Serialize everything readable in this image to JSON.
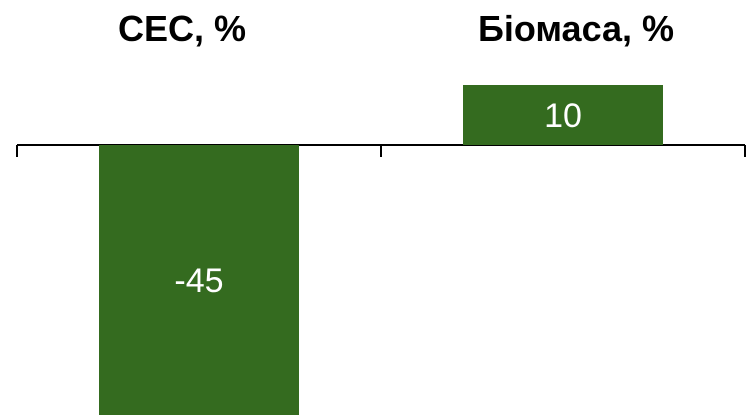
{
  "chart_data": {
    "type": "bar",
    "categories": [
      "СЕС, %",
      "Біомаса, %"
    ],
    "values": [
      -45,
      10
    ],
    "value_labels": [
      "-45",
      "10"
    ],
    "title": "",
    "xlabel": "",
    "ylabel": "",
    "grid": false,
    "legend": "none",
    "bar_color": "#346b1f",
    "label_color": "#ffffff"
  }
}
